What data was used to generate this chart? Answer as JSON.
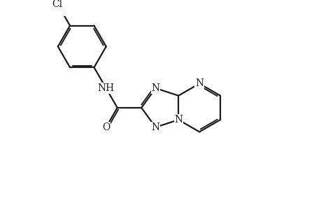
{
  "background_color": "#ffffff",
  "line_color": "#1a1a1a",
  "line_width": 1.6,
  "font_size": 10,
  "figsize": [
    4.6,
    3.0
  ],
  "dpi": 100,
  "xlim": [
    0,
    9.2
  ],
  "ylim": [
    0,
    6.0
  ]
}
